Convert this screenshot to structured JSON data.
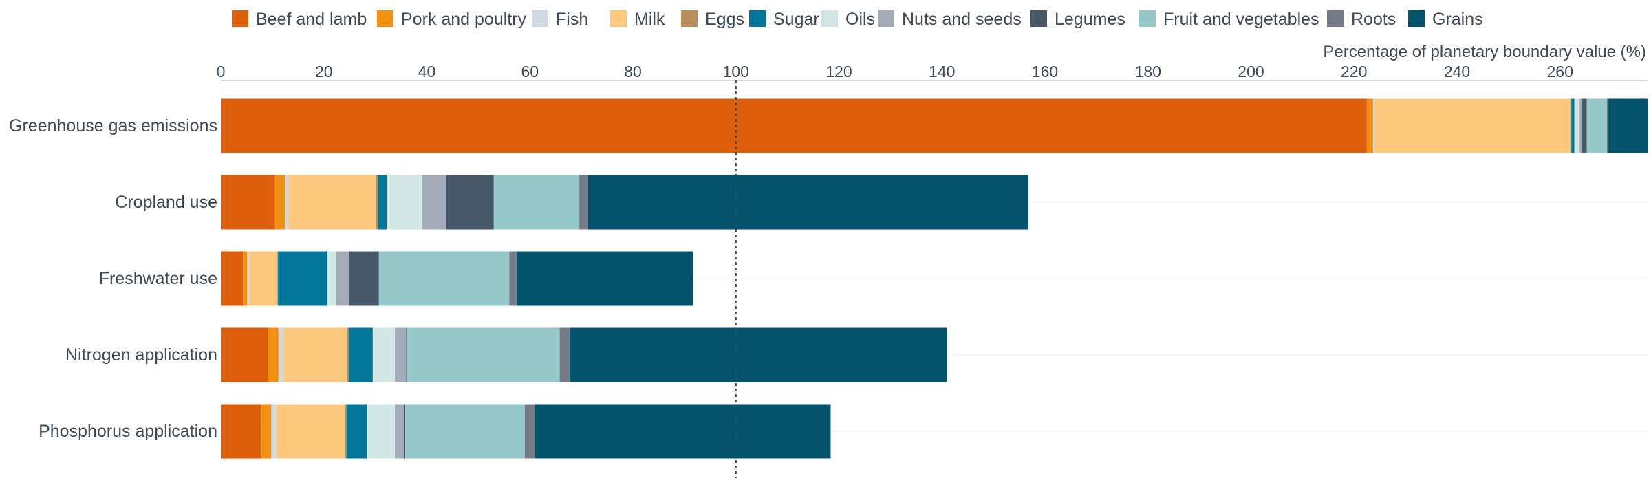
{
  "chart_data": {
    "type": "bar",
    "orientation": "horizontal",
    "stacked": true,
    "xlabel": "Percentage of planetary boundary value (%)",
    "xlim": [
      0,
      277
    ],
    "xticks": [
      0,
      20,
      40,
      60,
      80,
      100,
      120,
      140,
      160,
      180,
      200,
      220,
      240,
      260
    ],
    "reference_line": 100,
    "legend_position": "top",
    "grid": "horizontal row lines",
    "categories": [
      "Greenhouse gas emissions",
      "Cropland use",
      "Freshwater use",
      "Nitrogen application",
      "Phosphorus application"
    ],
    "series": [
      {
        "name": "Beef and lamb",
        "color": "#dd5e0b",
        "values": [
          222.5,
          10.5,
          4.3,
          9.2,
          7.9
        ]
      },
      {
        "name": "Pork and poultry",
        "color": "#f39012",
        "values": [
          1.2,
          2.0,
          0.8,
          2.0,
          1.9
        ]
      },
      {
        "name": "Fish",
        "color": "#cfd8e3",
        "values": [
          0.3,
          0.6,
          0.4,
          1.0,
          1.0
        ]
      },
      {
        "name": "Milk",
        "color": "#fbc87d",
        "values": [
          38.0,
          17.0,
          5.5,
          12.3,
          13.3
        ]
      },
      {
        "name": "Eggs",
        "color": "#b88e5a",
        "values": [
          0.2,
          0.4,
          0.1,
          0.3,
          0.3
        ]
      },
      {
        "name": "Sugar",
        "color": "#00779a",
        "values": [
          0.6,
          1.7,
          9.5,
          4.7,
          4.0
        ]
      },
      {
        "name": "Oils",
        "color": "#d2e8e7",
        "values": [
          1.0,
          6.8,
          1.8,
          4.3,
          5.4
        ]
      },
      {
        "name": "Nuts and seeds",
        "color": "#a3abb8",
        "values": [
          0.5,
          4.7,
          2.5,
          2.2,
          1.8
        ]
      },
      {
        "name": "Legumes",
        "color": "#46596b",
        "values": [
          0.9,
          9.3,
          5.8,
          0.2,
          0.2
        ]
      },
      {
        "name": "Fruit and vegetables",
        "color": "#95c9c9",
        "values": [
          3.9,
          16.6,
          25.3,
          29.6,
          23.2
        ]
      },
      {
        "name": "Roots",
        "color": "#757b87",
        "values": [
          0.3,
          1.7,
          1.4,
          1.9,
          2.0
        ]
      },
      {
        "name": "Grains",
        "color": "#02536b",
        "values": [
          7.6,
          85.5,
          34.3,
          73.3,
          57.4
        ]
      }
    ]
  }
}
